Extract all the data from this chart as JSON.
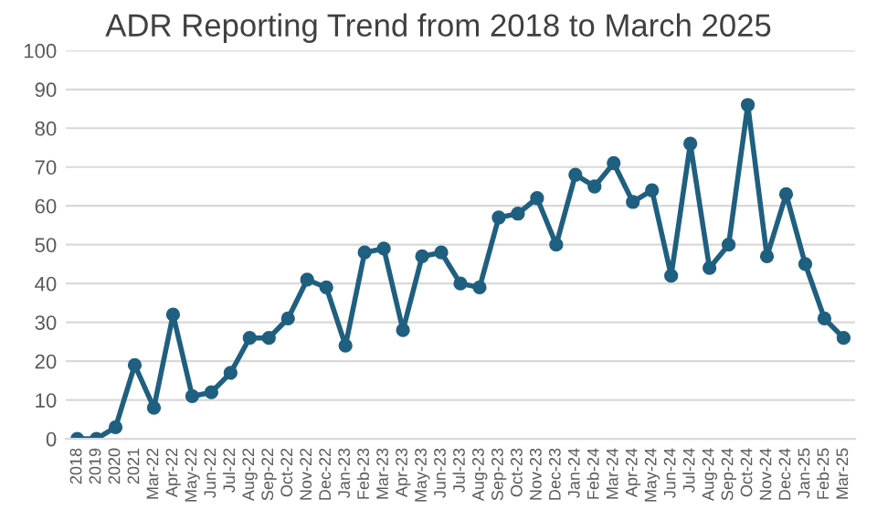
{
  "chart_data": {
    "type": "line",
    "title": "ADR Reporting Trend from 2018 to March 2025",
    "categories": [
      "2018",
      "2019",
      "2020",
      "2021",
      "Mar-22",
      "Apr-22",
      "May-22",
      "Jun-22",
      "Jul-22",
      "Aug-22",
      "Sep-22",
      "Oct-22",
      "Nov-22",
      "Dec-22",
      "Jan-23",
      "Feb-23",
      "Mar-23",
      "Apr-23",
      "May-23",
      "Jun-23",
      "Jul-23",
      "Aug-23",
      "Sep-23",
      "Oct-23",
      "Nov-23",
      "Dec-23",
      "Jan-24",
      "Feb-24",
      "Mar-24",
      "Apr-24",
      "May-24",
      "Jun-24",
      "Jul-24",
      "Aug-24",
      "Sep-24",
      "Oct-24",
      "Nov-24",
      "Dec-24",
      "Jan-25",
      "Feb-25",
      "Mar-25"
    ],
    "values": [
      0,
      0,
      3,
      19,
      8,
      32,
      11,
      12,
      17,
      26,
      26,
      31,
      41,
      39,
      24,
      48,
      49,
      28,
      47,
      48,
      40,
      39,
      57,
      58,
      62,
      50,
      68,
      65,
      71,
      61,
      64,
      42,
      76,
      44,
      50,
      86,
      47,
      63,
      45,
      31,
      26
    ],
    "color": "#1f5f7f",
    "ylim": [
      0,
      100
    ],
    "yticks": [
      0,
      10,
      20,
      30,
      40,
      50,
      60,
      70,
      80,
      90,
      100
    ],
    "grid": "y",
    "marker": "circle",
    "line_style": "solid"
  }
}
